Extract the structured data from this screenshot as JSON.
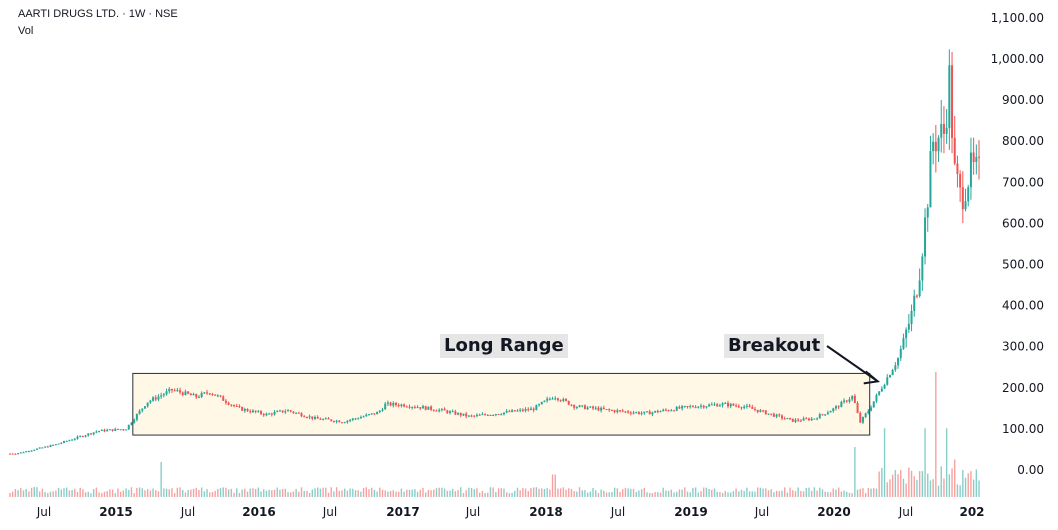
{
  "header": {
    "title": "AARTI DRUGS LTD. · 1W · NSE",
    "volume_label": "Vol"
  },
  "annotations": {
    "range_label": "Long Range",
    "breakout_label": "Breakout"
  },
  "colors": {
    "up": "#26a69a",
    "down": "#ef5350",
    "box_fill": "#fff8e6",
    "box_border": "#2a2e39",
    "text": "#131722"
  },
  "chart_data": {
    "type": "candlestick",
    "title": "AARTI DRUGS LTD. · 1W · NSE",
    "y_axis": {
      "ticks": [
        "1,100.00",
        "1,000.00",
        "900.00",
        "800.00",
        "700.00",
        "600.00",
        "500.00",
        "400.00",
        "300.00",
        "200.00",
        "100.00",
        "0.00"
      ],
      "ylim": [
        0,
        1100
      ]
    },
    "x_axis": {
      "ticks": [
        {
          "label": "Jul",
          "year": false
        },
        {
          "label": "2015",
          "year": true
        },
        {
          "label": "Jul",
          "year": false
        },
        {
          "label": "2016",
          "year": true
        },
        {
          "label": "Jul",
          "year": false
        },
        {
          "label": "2017",
          "year": true
        },
        {
          "label": "Jul",
          "year": false
        },
        {
          "label": "2018",
          "year": true
        },
        {
          "label": "Jul",
          "year": false
        },
        {
          "label": "2019",
          "year": true
        },
        {
          "label": "Jul",
          "year": false
        },
        {
          "label": "2020",
          "year": true
        },
        {
          "label": "Jul",
          "year": false
        },
        {
          "label": "202",
          "year": true
        }
      ],
      "range": [
        "2014-03",
        "2021-01"
      ]
    },
    "price_keypoints": [
      {
        "t": 2014.17,
        "p": 40
      },
      {
        "t": 2014.45,
        "p": 62
      },
      {
        "t": 2014.75,
        "p": 95
      },
      {
        "t": 2014.95,
        "p": 100
      },
      {
        "t": 2015.1,
        "p": 165
      },
      {
        "t": 2015.28,
        "p": 195
      },
      {
        "t": 2015.45,
        "p": 178
      },
      {
        "t": 2015.55,
        "p": 190
      },
      {
        "t": 2015.75,
        "p": 150
      },
      {
        "t": 2015.95,
        "p": 135
      },
      {
        "t": 2016.1,
        "p": 145
      },
      {
        "t": 2016.3,
        "p": 125
      },
      {
        "t": 2016.5,
        "p": 118
      },
      {
        "t": 2016.75,
        "p": 140
      },
      {
        "t": 2016.8,
        "p": 160
      },
      {
        "t": 2016.95,
        "p": 158
      },
      {
        "t": 2017.2,
        "p": 145
      },
      {
        "t": 2017.4,
        "p": 130
      },
      {
        "t": 2017.6,
        "p": 138
      },
      {
        "t": 2017.85,
        "p": 148
      },
      {
        "t": 2018.0,
        "p": 180
      },
      {
        "t": 2018.15,
        "p": 155
      },
      {
        "t": 2018.4,
        "p": 145
      },
      {
        "t": 2018.65,
        "p": 138
      },
      {
        "t": 2018.85,
        "p": 148
      },
      {
        "t": 2019.0,
        "p": 155
      },
      {
        "t": 2019.2,
        "p": 160
      },
      {
        "t": 2019.35,
        "p": 155
      },
      {
        "t": 2019.55,
        "p": 135
      },
      {
        "t": 2019.7,
        "p": 120
      },
      {
        "t": 2019.85,
        "p": 125
      },
      {
        "t": 2020.0,
        "p": 150
      },
      {
        "t": 2020.13,
        "p": 180
      },
      {
        "t": 2020.18,
        "p": 115
      },
      {
        "t": 2020.25,
        "p": 150
      },
      {
        "t": 2020.35,
        "p": 210
      },
      {
        "t": 2020.45,
        "p": 270
      },
      {
        "t": 2020.55,
        "p": 380
      },
      {
        "t": 2020.6,
        "p": 470
      },
      {
        "t": 2020.65,
        "p": 620
      },
      {
        "t": 2020.7,
        "p": 800
      },
      {
        "t": 2020.78,
        "p": 820
      },
      {
        "t": 2020.82,
        "p": 960
      },
      {
        "t": 2020.85,
        "p": 730
      },
      {
        "t": 2020.9,
        "p": 660
      },
      {
        "t": 2020.97,
        "p": 730
      },
      {
        "t": 2021.05,
        "p": 720
      }
    ],
    "range_box": {
      "start": "2015-01",
      "end": "2020-04",
      "low": 85,
      "high": 235
    },
    "breakout_point": {
      "date": "2020-04",
      "price": 240
    },
    "volume_peaks": [
      {
        "t": 2015.2,
        "v": 0.28
      },
      {
        "t": 2018.0,
        "v": 0.18
      },
      {
        "t": 2020.15,
        "v": 0.4
      },
      {
        "t": 2020.35,
        "v": 0.55
      },
      {
        "t": 2020.65,
        "v": 0.55
      },
      {
        "t": 2020.72,
        "v": 1.0
      },
      {
        "t": 2020.8,
        "v": 0.55
      },
      {
        "t": 2020.85,
        "v": 0.3
      }
    ]
  }
}
